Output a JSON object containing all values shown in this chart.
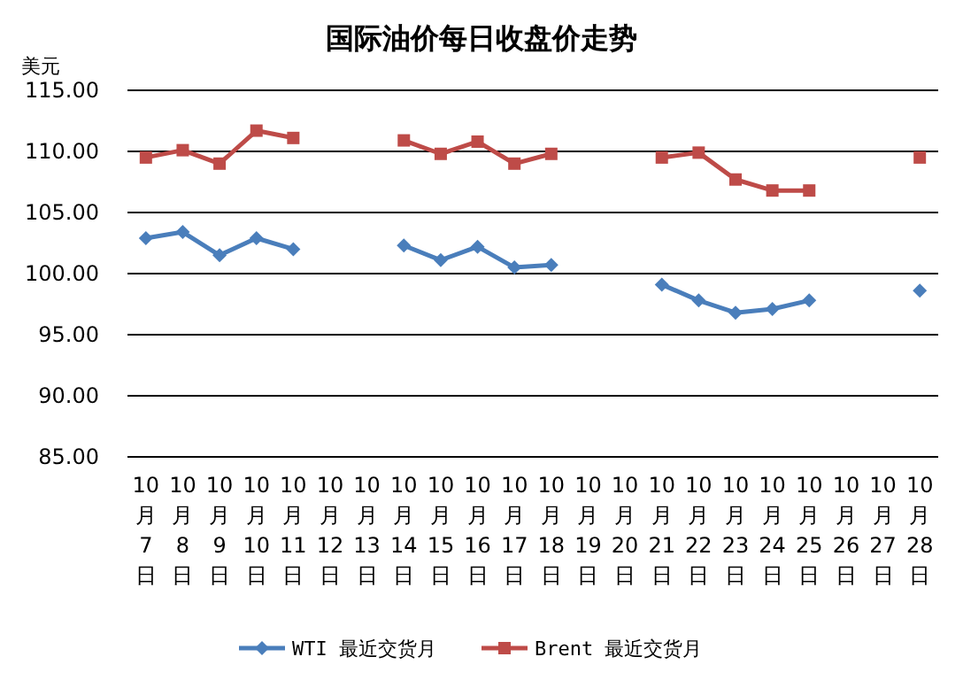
{
  "chart_data": {
    "type": "line",
    "title": "国际油价每日收盘价走势",
    "ylabel": "美元",
    "categories": [
      "10月7日",
      "10月8日",
      "10月9日",
      "10月10日",
      "10月11日",
      "10月12日",
      "10月13日",
      "10月14日",
      "10月15日",
      "10月16日",
      "10月17日",
      "10月18日",
      "10月19日",
      "10月20日",
      "10月21日",
      "10月22日",
      "10月23日",
      "10月24日",
      "10月25日",
      "10月26日",
      "10月27日",
      "10月28日"
    ],
    "series": [
      {
        "name": "WTI 最近交货月",
        "color": "#4a7ebb",
        "marker": "diamond",
        "values": [
          102.9,
          103.4,
          101.5,
          102.9,
          102.0,
          null,
          null,
          102.3,
          101.1,
          102.2,
          100.5,
          100.7,
          null,
          null,
          99.1,
          97.8,
          96.8,
          97.1,
          97.8,
          null,
          null,
          98.6
        ]
      },
      {
        "name": "Brent 最近交货月",
        "color": "#be4b48",
        "marker": "square",
        "values": [
          109.5,
          110.1,
          109.0,
          111.7,
          111.1,
          null,
          null,
          110.9,
          109.8,
          110.8,
          109.0,
          109.8,
          null,
          null,
          109.5,
          109.9,
          107.7,
          106.8,
          106.8,
          null,
          null,
          109.5
        ]
      }
    ],
    "ylim": [
      85,
      115
    ],
    "yticks": [
      {
        "value": 85,
        "label": "85.00"
      },
      {
        "value": 90,
        "label": "90.00"
      },
      {
        "value": 95,
        "label": "95.00"
      },
      {
        "value": 100,
        "label": "100.00"
      },
      {
        "value": 105,
        "label": "105.00"
      },
      {
        "value": 110,
        "label": "110.00"
      },
      {
        "value": 115,
        "label": "115.00"
      }
    ],
    "grid": "y",
    "legend": "bottom",
    "line_style": "solid"
  }
}
